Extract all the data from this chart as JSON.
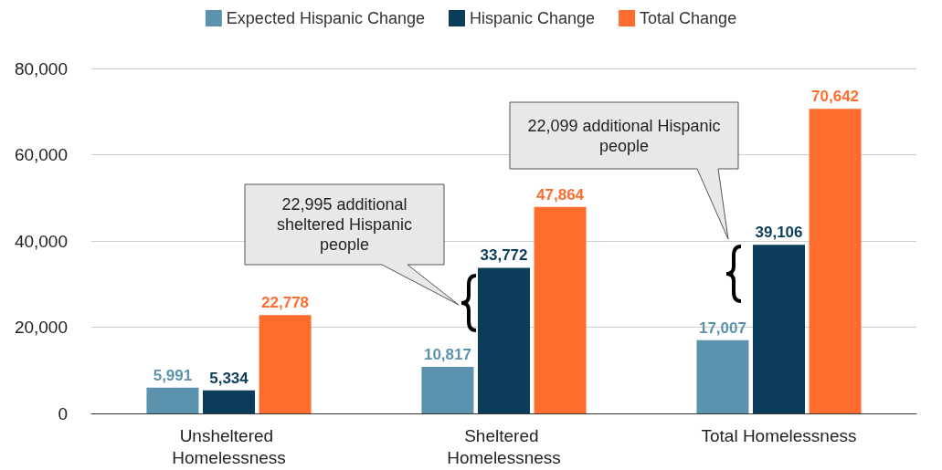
{
  "chart_data": {
    "type": "bar",
    "categories": [
      "Unsheltered Homelessness",
      "Sheltered Homelessness",
      "Total Homelessness"
    ],
    "series": [
      {
        "name": "Expected Hispanic Change",
        "color": "#5b93ae",
        "values": [
          5991,
          10817,
          17007
        ],
        "value_labels": [
          "5,991",
          "10,817",
          "17,007"
        ]
      },
      {
        "name": "Hispanic Change",
        "color": "#0b3d5a",
        "values": [
          5334,
          33772,
          39106
        ],
        "value_labels": [
          "5,334",
          "33,772",
          "39,106"
        ]
      },
      {
        "name": "Total Change",
        "color": "#ff6d2e",
        "values": [
          22778,
          47864,
          70642
        ],
        "value_labels": [
          "22,778",
          "47,864",
          "70,642"
        ]
      }
    ],
    "ylim": [
      0,
      80000
    ],
    "yticks": [
      0,
      {
        "value": 20000,
        "label": "20,000"
      },
      {
        "value": 40000,
        "label": "40,000"
      },
      {
        "value": 60000,
        "label": "60,000"
      },
      {
        "value": 80000,
        "label": "80,000"
      }
    ],
    "grid": "y",
    "legend": "top",
    "annotations": [
      "22,995 additional sheltered Hispanic people",
      "22,099 additional Hispanic people"
    ]
  }
}
